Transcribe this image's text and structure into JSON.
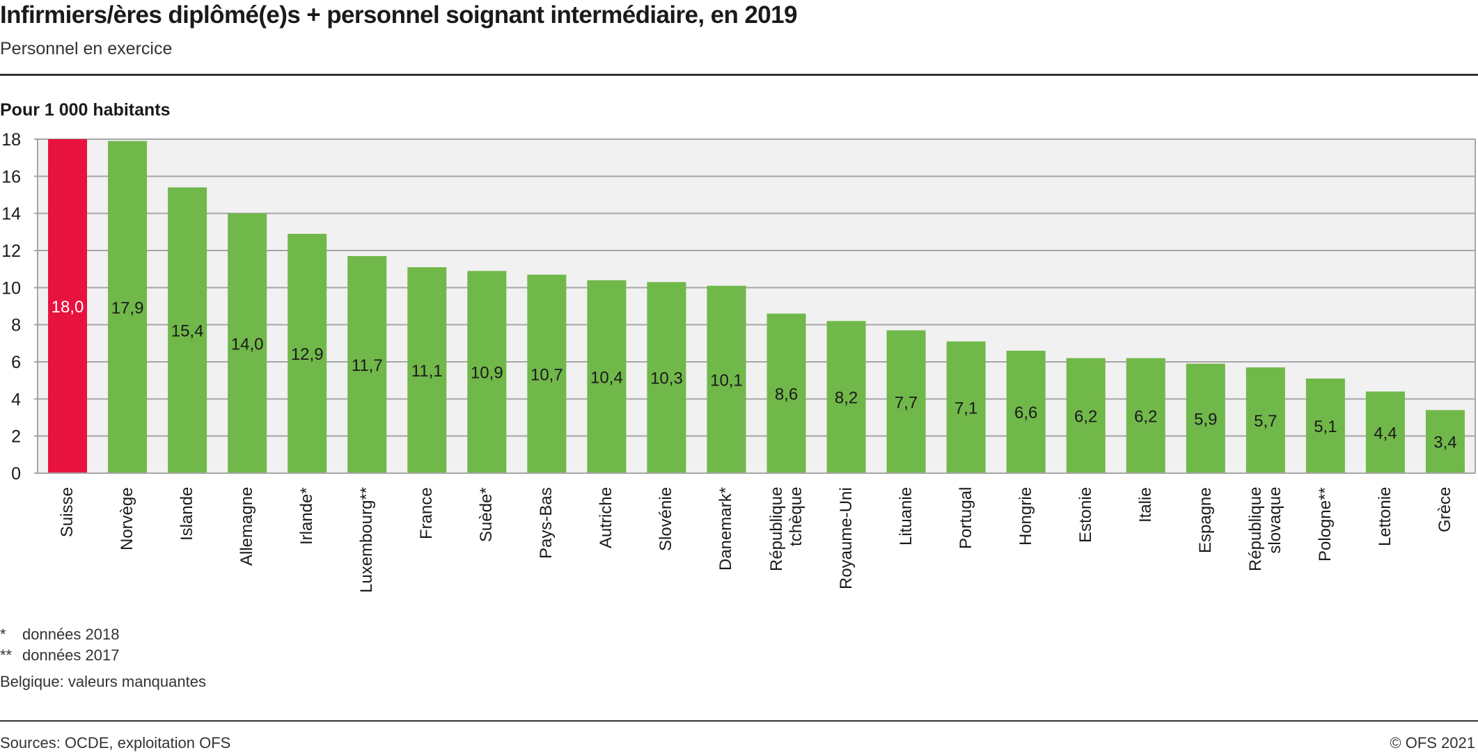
{
  "header": {
    "title": "Infirmiers/ères diplômé(e)s + personnel soignant intermédiaire, en 2019",
    "subtitle": "Personnel en exercice"
  },
  "chart_data": {
    "type": "bar",
    "title": "Infirmiers/ères diplômé(e)s + personnel soignant intermédiaire, en 2019",
    "subtitle": "Personnel en exercice",
    "ylabel": "Pour 1 000 habitants",
    "xlabel": "",
    "ylim": [
      0,
      18
    ],
    "yticks": [
      0,
      2,
      4,
      6,
      8,
      10,
      12,
      14,
      16,
      18
    ],
    "grid": true,
    "categories": [
      "Suisse",
      "Norvège",
      "Islande",
      "Allemagne",
      "Irlande*",
      "Luxembourg**",
      "France",
      "Suède*",
      "Pays-Bas",
      "Autriche",
      "Slovénie",
      "Danemark*",
      "République tchèque",
      "Royaume-Uni",
      "Lituanie",
      "Portugal",
      "Hongrie",
      "Estonie",
      "Italie",
      "Espagne",
      "République slovaque",
      "Pologne**",
      "Lettonie",
      "Grèce"
    ],
    "category_lines": [
      [
        "Suisse"
      ],
      [
        "Norvège"
      ],
      [
        "Islande"
      ],
      [
        "Allemagne"
      ],
      [
        "Irlande*"
      ],
      [
        "Luxembourg**"
      ],
      [
        "France"
      ],
      [
        "Suède*"
      ],
      [
        "Pays-Bas"
      ],
      [
        "Autriche"
      ],
      [
        "Slovénie"
      ],
      [
        "Danemark*"
      ],
      [
        "République",
        "tchèque"
      ],
      [
        "Royaume-Uni"
      ],
      [
        "Lituanie"
      ],
      [
        "Portugal"
      ],
      [
        "Hongrie"
      ],
      [
        "Estonie"
      ],
      [
        "Italie"
      ],
      [
        "Espagne"
      ],
      [
        "République",
        "slovaque"
      ],
      [
        "Pologne**"
      ],
      [
        "Lettonie"
      ],
      [
        "Grèce"
      ]
    ],
    "values": [
      18.0,
      17.9,
      15.4,
      14.0,
      12.9,
      11.7,
      11.1,
      10.9,
      10.7,
      10.4,
      10.3,
      10.1,
      8.6,
      8.2,
      7.7,
      7.1,
      6.6,
      6.2,
      6.2,
      5.9,
      5.7,
      5.1,
      4.4,
      3.4
    ],
    "value_labels": [
      "18,0",
      "17,9",
      "15,4",
      "14,0",
      "12,9",
      "11,7",
      "11,1",
      "10,9",
      "10,7",
      "10,4",
      "10,3",
      "10,1",
      "8,6",
      "8,2",
      "7,7",
      "7,1",
      "6,6",
      "6,2",
      "6,2",
      "5,9",
      "5,7",
      "5,1",
      "4,4",
      "3,4"
    ],
    "highlight": "Suisse",
    "colors": {
      "highlight": "#e8123f",
      "bar": "#71b84a",
      "plot_background": "#f1f1f1",
      "grid": "#a6a6a6",
      "highlight_label": "#ffffff",
      "bar_label": "#1a1a1a"
    }
  },
  "notes": {
    "items": [
      {
        "mark": "*",
        "text": "données 2018"
      },
      {
        "mark": "**",
        "text": "données 2017"
      }
    ],
    "missing": "Belgique: valeurs manquantes"
  },
  "footer": {
    "source": "Sources: OCDE, exploitation OFS",
    "copyright": "© OFS 2021"
  }
}
